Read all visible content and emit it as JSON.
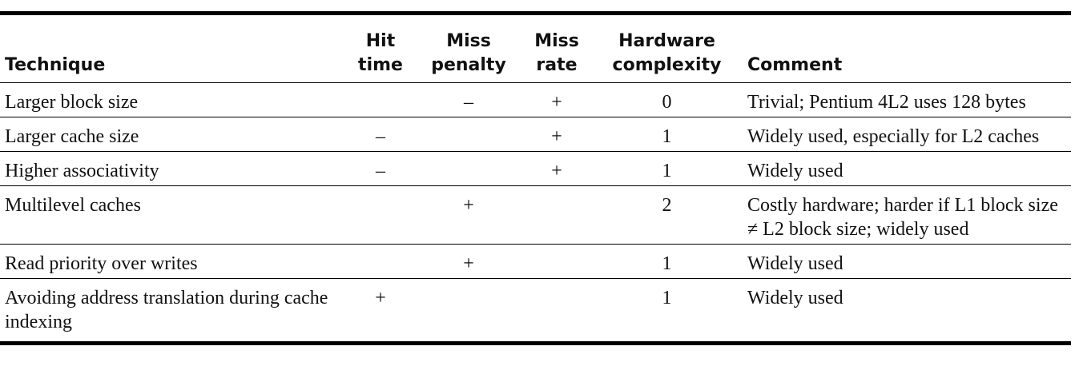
{
  "headers": {
    "technique": "Technique",
    "hit_time": [
      "Hit",
      "time"
    ],
    "miss_penalty": [
      "Miss",
      "penalty"
    ],
    "miss_rate": [
      "Miss",
      "rate"
    ],
    "hardware_complexity": [
      "Hardware",
      "complexity"
    ],
    "comment": "Comment"
  },
  "rows": [
    {
      "technique": "Larger block size",
      "hit_time": "",
      "miss_penalty": "–",
      "miss_rate": "+",
      "complexity": "0",
      "comment": "Trivial; Pentium 4L2 uses 128 bytes"
    },
    {
      "technique": "Larger cache size",
      "hit_time": "–",
      "miss_penalty": "",
      "miss_rate": "+",
      "complexity": "1",
      "comment": "Widely used, especially for L2 caches"
    },
    {
      "technique": "Higher associativity",
      "hit_time": "–",
      "miss_penalty": "",
      "miss_rate": "+",
      "complexity": "1",
      "comment": "Widely used"
    },
    {
      "technique": "Multilevel caches",
      "hit_time": "",
      "miss_penalty": "+",
      "miss_rate": "",
      "complexity": "2",
      "comment": "Costly hardware; harder if L1 block size ≠ L2 block size; widely used"
    },
    {
      "technique": "Read priority over writes",
      "hit_time": "",
      "miss_penalty": "+",
      "miss_rate": "",
      "complexity": "1",
      "comment": "Widely used"
    },
    {
      "technique": "Avoiding address translation during cache indexing",
      "hit_time": "+",
      "miss_penalty": "",
      "miss_rate": "",
      "complexity": "1",
      "comment": "Widely used"
    }
  ]
}
